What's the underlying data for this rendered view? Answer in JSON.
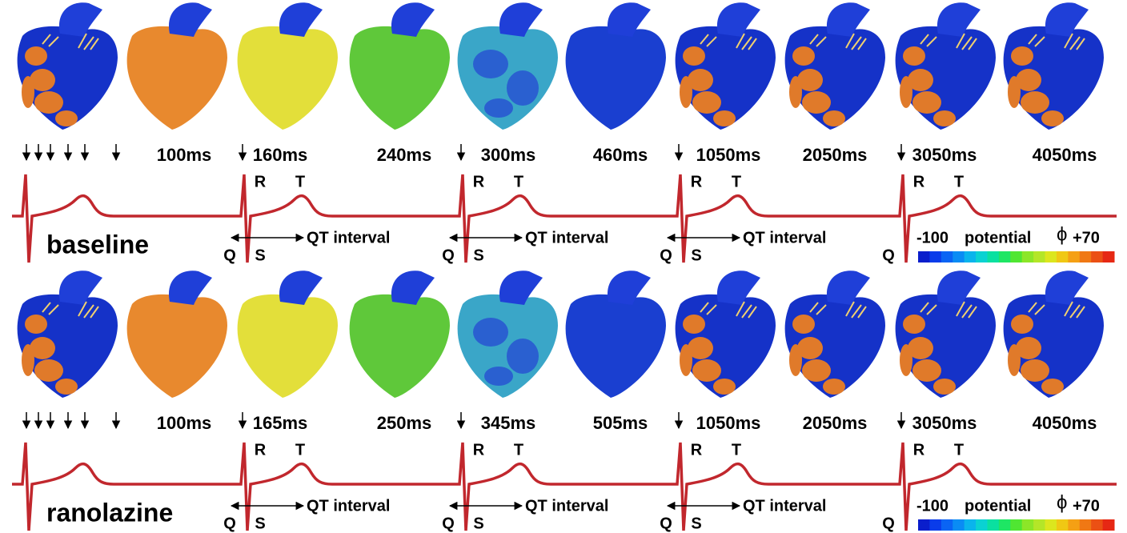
{
  "panels": [
    {
      "condition": "baseline",
      "times": [
        "100ms",
        "160ms",
        "240ms",
        "300ms",
        "460ms",
        "1050ms",
        "2050ms",
        "3050ms",
        "4050ms"
      ],
      "beats": [
        {
          "R": "R",
          "T": "T",
          "Q": "Q",
          "S": "S",
          "interval": "QT interval"
        },
        {
          "R": "R",
          "T": "T",
          "Q": "Q",
          "S": "S",
          "interval": "QT interval"
        },
        {
          "R": "R",
          "T": "T",
          "Q": "Q",
          "S": "S",
          "interval": "QT interval"
        },
        {
          "R": "R",
          "T": "T",
          "Q": "Q"
        }
      ],
      "colorbar": {
        "min": "-100",
        "label": "potential",
        "symbol": "ϕ",
        "max": "+70"
      }
    },
    {
      "condition": "ranolazine",
      "times": [
        "100ms",
        "165ms",
        "250ms",
        "345ms",
        "505ms",
        "1050ms",
        "2050ms",
        "3050ms",
        "4050ms"
      ],
      "beats": [
        {
          "R": "R",
          "T": "T",
          "Q": "Q",
          "S": "S",
          "interval": "QT interval"
        },
        {
          "R": "R",
          "T": "T",
          "Q": "Q",
          "S": "S",
          "interval": "QT interval"
        },
        {
          "R": "R",
          "T": "T",
          "Q": "Q",
          "S": "S",
          "interval": "QT interval"
        },
        {
          "R": "R",
          "T": "T",
          "Q": "Q"
        }
      ],
      "colorbar": {
        "min": "-100",
        "label": "potential",
        "symbol": "ϕ",
        "max": "+70"
      }
    }
  ]
}
